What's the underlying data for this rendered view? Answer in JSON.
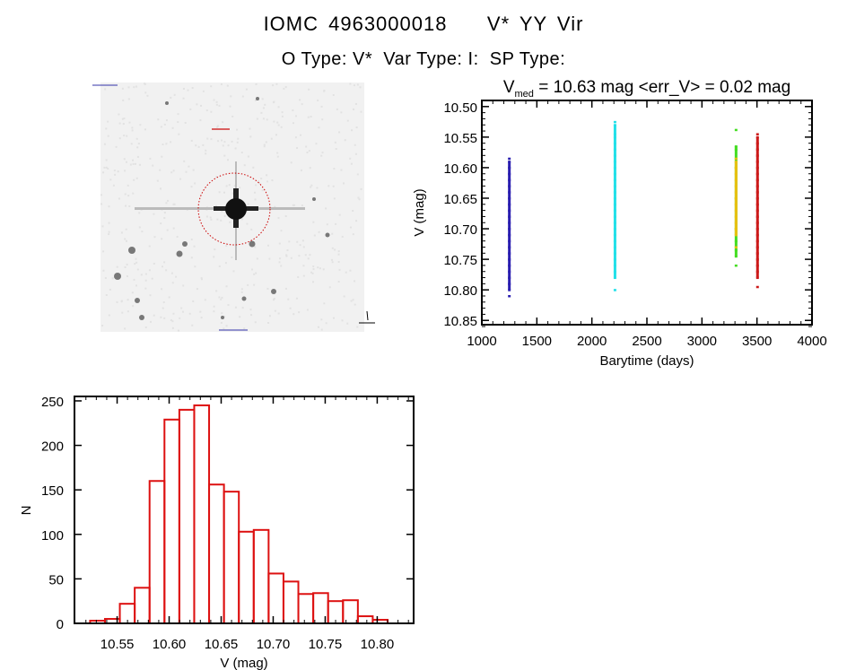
{
  "header": {
    "title": "IOMC 4963000018    V* YY Vir",
    "subtitle": "O Type: V*  Var Type: I:  SP Type:"
  },
  "image_panel": {
    "description_icon": "star-field-image",
    "marker_color": "#cc0000"
  },
  "chart_data": [
    {
      "type": "scatter",
      "title_prefix": "V",
      "title_subscript": "med",
      "title_rest": " = 10.63 mag <err_V> = 0.02 mag",
      "xlabel": "Barytime (days)",
      "ylabel": "V (mag)",
      "xlim": [
        1000,
        4000
      ],
      "ylim": [
        10.857,
        10.49
      ],
      "y_reversed": true,
      "xticks": [
        "1000",
        "1500",
        "2000",
        "2500",
        "3000",
        "3500",
        "4000"
      ],
      "yticks": [
        "10.50",
        "10.55",
        "10.60",
        "10.65",
        "10.70",
        "10.75",
        "10.80",
        "10.85"
      ],
      "grid": false,
      "series": [
        {
          "color": "#2a1fb0",
          "x": 1250,
          "y": [
            10.585,
            10.59,
            10.6,
            10.61,
            10.62,
            10.63,
            10.64,
            10.65,
            10.66,
            10.67,
            10.68,
            10.69,
            10.7,
            10.71,
            10.72,
            10.73,
            10.74,
            10.75,
            10.76,
            10.77,
            10.78,
            10.79,
            10.8,
            10.81
          ]
        },
        {
          "color": "#22e0e8",
          "x": 2210,
          "y": [
            10.525,
            10.53,
            10.545,
            10.55,
            10.56,
            10.57,
            10.58,
            10.59,
            10.6,
            10.61,
            10.62,
            10.63,
            10.64,
            10.65,
            10.66,
            10.67,
            10.68,
            10.69,
            10.7,
            10.71,
            10.72,
            10.73,
            10.74,
            10.75,
            10.76,
            10.77,
            10.78,
            10.8
          ]
        },
        {
          "color": "#44dd22",
          "x": 3310,
          "y": [
            10.538,
            10.565,
            10.57,
            10.6,
            10.65,
            10.7,
            10.72,
            10.735,
            10.745,
            10.76
          ]
        },
        {
          "color": "#e8c010",
          "x": 3310,
          "y": [
            10.585,
            10.59,
            10.6,
            10.61,
            10.62,
            10.63,
            10.64,
            10.65,
            10.66,
            10.67,
            10.68,
            10.69,
            10.7,
            10.71,
            10.73
          ]
        },
        {
          "color": "#cc1a1a",
          "x": 3505,
          "y": [
            10.545,
            10.55,
            10.56,
            10.57,
            10.58,
            10.59,
            10.6,
            10.61,
            10.62,
            10.63,
            10.64,
            10.65,
            10.66,
            10.67,
            10.68,
            10.69,
            10.7,
            10.71,
            10.72,
            10.73,
            10.74,
            10.75,
            10.76,
            10.77,
            10.78,
            10.795
          ]
        }
      ]
    },
    {
      "type": "bar",
      "subtype": "histogram",
      "xlabel": "V (mag)",
      "ylabel": "N",
      "xlim": [
        10.509,
        10.835
      ],
      "ylim": [
        0,
        255
      ],
      "xticks": [
        "10.55",
        "10.60",
        "10.65",
        "10.70",
        "10.75",
        "10.80"
      ],
      "yticks": [
        "0",
        "50",
        "100",
        "150",
        "200",
        "250"
      ],
      "bin_start": 10.524,
      "bin_width": 0.0143,
      "values": [
        3,
        5,
        22,
        40,
        160,
        229,
        240,
        245,
        156,
        148,
        103,
        105,
        56,
        47,
        33,
        34,
        25,
        26,
        8,
        4
      ],
      "bar_color": "#dd1111",
      "grid": false
    }
  ]
}
